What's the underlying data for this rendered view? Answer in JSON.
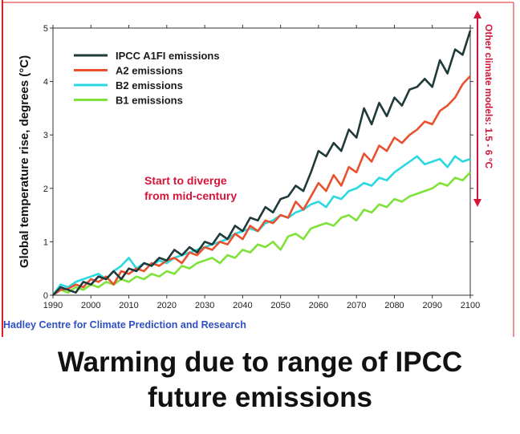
{
  "caption": {
    "line1": "Warming due to range of IPCC",
    "line2": "future emissions"
  },
  "credit": "Hadley Centre for Climate Prediction and Research",
  "chart_data": {
    "type": "line",
    "title": "",
    "xlabel": "",
    "ylabel": "Global temperature rise, degrees (°C)",
    "xlim": [
      1990,
      2100
    ],
    "ylim": [
      0,
      5
    ],
    "x_ticks": [
      1990,
      2000,
      2010,
      2020,
      2030,
      2040,
      2050,
      2060,
      2070,
      2080,
      2090,
      2100
    ],
    "y_ticks": [
      0,
      1,
      2,
      3,
      4,
      5
    ],
    "grid": false,
    "legend": "top-left",
    "annotations": [
      {
        "text_lines": [
          "Start to diverge",
          "from mid-century"
        ],
        "color": "#d4153a"
      },
      {
        "text": "Other climate models: 1.5 - 6 °C",
        "color": "#d4153a",
        "arrow_range": [
          1.5,
          6
        ]
      }
    ],
    "series": [
      {
        "name": "IPCC A1FI emissions",
        "color": "#1f3a3a",
        "x": [
          1990,
          1992,
          1994,
          1996,
          1998,
          2000,
          2002,
          2004,
          2006,
          2008,
          2010,
          2012,
          2014,
          2016,
          2018,
          2020,
          2022,
          2024,
          2026,
          2028,
          2030,
          2032,
          2034,
          2036,
          2038,
          2040,
          2042,
          2044,
          2046,
          2048,
          2050,
          2052,
          2054,
          2056,
          2058,
          2060,
          2062,
          2064,
          2066,
          2068,
          2070,
          2072,
          2074,
          2076,
          2078,
          2080,
          2082,
          2084,
          2086,
          2088,
          2090,
          2092,
          2094,
          2096,
          2098,
          2100
        ],
        "values": [
          0.0,
          0.15,
          0.1,
          0.05,
          0.25,
          0.2,
          0.35,
          0.3,
          0.45,
          0.3,
          0.5,
          0.45,
          0.6,
          0.55,
          0.7,
          0.65,
          0.85,
          0.75,
          0.9,
          0.8,
          1.0,
          0.95,
          1.15,
          1.05,
          1.3,
          1.2,
          1.45,
          1.4,
          1.65,
          1.55,
          1.8,
          1.85,
          2.05,
          1.95,
          2.3,
          2.7,
          2.6,
          2.85,
          2.7,
          3.1,
          2.95,
          3.5,
          3.2,
          3.6,
          3.35,
          3.7,
          3.55,
          3.85,
          3.9,
          4.05,
          3.9,
          4.4,
          4.15,
          4.6,
          4.5,
          4.95
        ]
      },
      {
        "name": "A2 emissions",
        "color": "#e8502e",
        "x": [
          1990,
          1992,
          1994,
          1996,
          1998,
          2000,
          2002,
          2004,
          2006,
          2008,
          2010,
          2012,
          2014,
          2016,
          2018,
          2020,
          2022,
          2024,
          2026,
          2028,
          2030,
          2032,
          2034,
          2036,
          2038,
          2040,
          2042,
          2044,
          2046,
          2048,
          2050,
          2052,
          2054,
          2056,
          2058,
          2060,
          2062,
          2064,
          2066,
          2068,
          2070,
          2072,
          2074,
          2076,
          2078,
          2080,
          2082,
          2084,
          2086,
          2088,
          2090,
          2092,
          2094,
          2096,
          2098,
          2100
        ],
        "values": [
          0.0,
          0.1,
          0.12,
          0.2,
          0.15,
          0.3,
          0.25,
          0.35,
          0.2,
          0.45,
          0.4,
          0.5,
          0.45,
          0.6,
          0.55,
          0.65,
          0.7,
          0.6,
          0.8,
          0.75,
          0.9,
          0.85,
          1.0,
          0.95,
          1.15,
          1.05,
          1.3,
          1.2,
          1.4,
          1.35,
          1.5,
          1.45,
          1.75,
          1.6,
          1.85,
          2.1,
          1.95,
          2.25,
          2.05,
          2.4,
          2.3,
          2.65,
          2.5,
          2.8,
          2.7,
          2.95,
          2.85,
          3.0,
          3.1,
          3.25,
          3.2,
          3.45,
          3.55,
          3.7,
          3.95,
          4.1
        ]
      },
      {
        "name": "B2 emissions",
        "color": "#2ad8e0",
        "x": [
          1990,
          1992,
          1994,
          1996,
          1998,
          2000,
          2002,
          2004,
          2006,
          2008,
          2010,
          2012,
          2014,
          2016,
          2018,
          2020,
          2022,
          2024,
          2026,
          2028,
          2030,
          2032,
          2034,
          2036,
          2038,
          2040,
          2042,
          2044,
          2046,
          2048,
          2050,
          2052,
          2054,
          2056,
          2058,
          2060,
          2062,
          2064,
          2066,
          2068,
          2070,
          2072,
          2074,
          2076,
          2078,
          2080,
          2082,
          2084,
          2086,
          2088,
          2090,
          2092,
          2094,
          2096,
          2098,
          2100
        ],
        "values": [
          0.0,
          0.2,
          0.15,
          0.25,
          0.3,
          0.35,
          0.4,
          0.3,
          0.45,
          0.55,
          0.7,
          0.5,
          0.6,
          0.55,
          0.65,
          0.6,
          0.7,
          0.75,
          0.8,
          0.85,
          0.9,
          0.95,
          1.0,
          1.05,
          1.15,
          1.2,
          1.25,
          1.2,
          1.35,
          1.4,
          1.5,
          1.45,
          1.55,
          1.6,
          1.7,
          1.75,
          1.65,
          1.85,
          1.8,
          1.95,
          2.0,
          2.1,
          2.05,
          2.2,
          2.15,
          2.3,
          2.4,
          2.5,
          2.6,
          2.45,
          2.5,
          2.55,
          2.4,
          2.6,
          2.5,
          2.55
        ]
      },
      {
        "name": "B1 emissions",
        "color": "#7ee23a",
        "x": [
          1990,
          1992,
          1994,
          1996,
          1998,
          2000,
          2002,
          2004,
          2006,
          2008,
          2010,
          2012,
          2014,
          2016,
          2018,
          2020,
          2022,
          2024,
          2026,
          2028,
          2030,
          2032,
          2034,
          2036,
          2038,
          2040,
          2042,
          2044,
          2046,
          2048,
          2050,
          2052,
          2054,
          2056,
          2058,
          2060,
          2062,
          2064,
          2066,
          2068,
          2070,
          2072,
          2074,
          2076,
          2078,
          2080,
          2082,
          2084,
          2086,
          2088,
          2090,
          2092,
          2094,
          2096,
          2098,
          2100
        ],
        "values": [
          0.0,
          0.1,
          0.05,
          0.15,
          0.1,
          0.2,
          0.15,
          0.25,
          0.2,
          0.3,
          0.25,
          0.35,
          0.3,
          0.4,
          0.35,
          0.45,
          0.4,
          0.55,
          0.5,
          0.6,
          0.65,
          0.7,
          0.6,
          0.75,
          0.7,
          0.85,
          0.8,
          0.95,
          0.9,
          1.0,
          0.85,
          1.1,
          1.15,
          1.05,
          1.25,
          1.3,
          1.35,
          1.3,
          1.45,
          1.5,
          1.4,
          1.6,
          1.55,
          1.7,
          1.65,
          1.8,
          1.75,
          1.85,
          1.9,
          1.95,
          2.0,
          2.1,
          2.05,
          2.2,
          2.15,
          2.3
        ]
      }
    ]
  }
}
